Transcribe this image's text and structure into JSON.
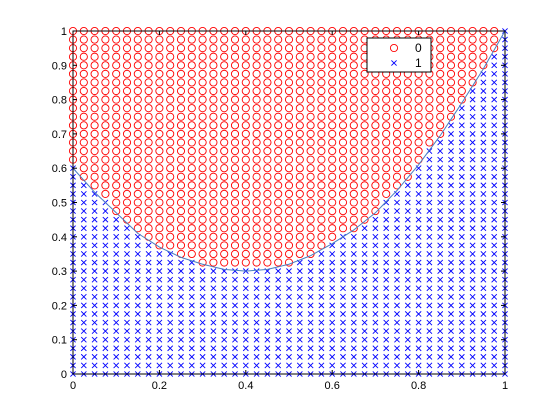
{
  "chart_data": {
    "type": "scatter",
    "xlim": [
      0,
      1
    ],
    "ylim": [
      0,
      1
    ],
    "xticks": [
      "0",
      "0.2",
      "0.4",
      "0.6",
      "0.8",
      "1"
    ],
    "yticks": [
      "0",
      "0.1",
      "0.2",
      "0.3",
      "0.4",
      "0.5",
      "0.6",
      "0.7",
      "0.8",
      "0.9",
      "1"
    ],
    "grid": false,
    "legend_position": "top-right",
    "grid_spacing": 0.025,
    "series": [
      {
        "name": "0",
        "marker": "circle",
        "color": "#ff0000",
        "rule": "points on a 0.025 grid with y above the decision curve"
      },
      {
        "name": "1",
        "marker": "x",
        "color": "#0000ff",
        "rule": "points on a 0.025 grid with y below the decision curve"
      }
    ],
    "curve": {
      "color": "#4a7fc1",
      "x": [
        0,
        0.05,
        0.1,
        0.15,
        0.2,
        0.25,
        0.3,
        0.35,
        0.4,
        0.45,
        0.5,
        0.55,
        0.6,
        0.65,
        0.7,
        0.75,
        0.8,
        0.85,
        0.9,
        0.95,
        1.0
      ],
      "y": [
        0.6,
        0.53,
        0.47,
        0.41,
        0.37,
        0.34,
        0.32,
        0.305,
        0.3,
        0.305,
        0.32,
        0.345,
        0.38,
        0.42,
        0.47,
        0.535,
        0.61,
        0.695,
        0.79,
        0.89,
        1.0
      ]
    }
  }
}
